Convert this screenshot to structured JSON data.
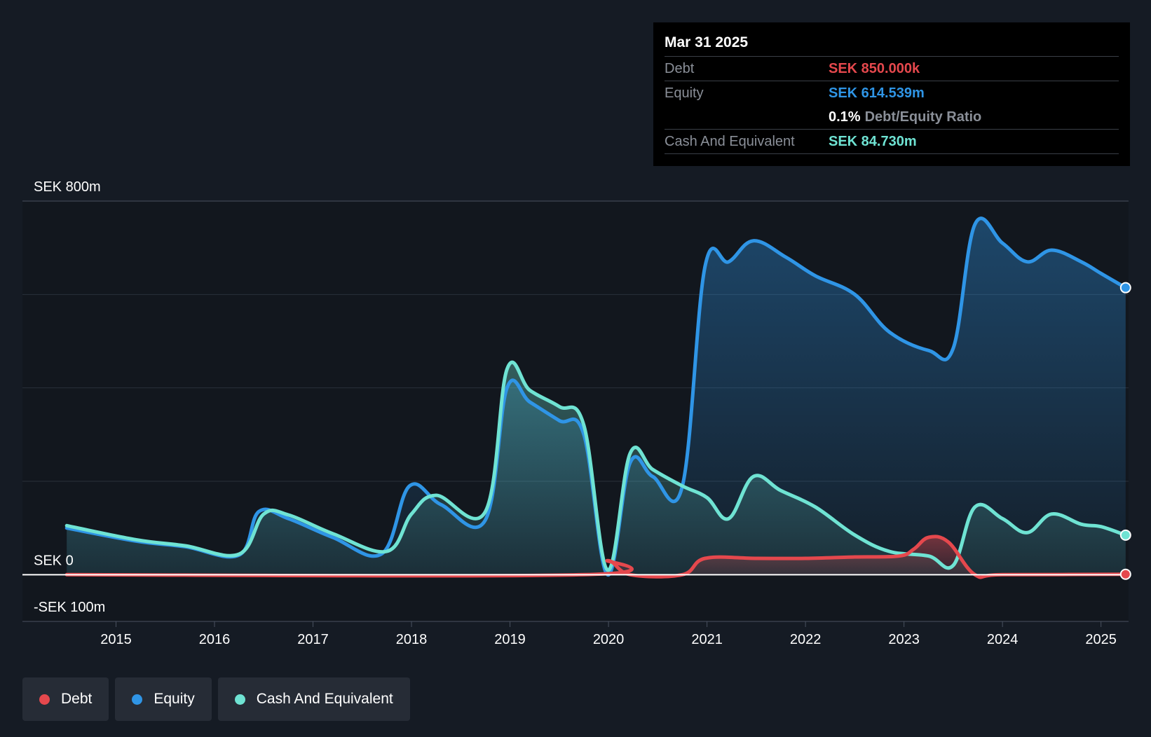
{
  "tooltip": {
    "date": "Mar 31 2025",
    "debt_label": "Debt",
    "debt_value": "SEK 850.000k",
    "equity_label": "Equity",
    "equity_value": "SEK 614.539m",
    "ratio_value": "0.1%",
    "ratio_label": "Debt/Equity Ratio",
    "cash_label": "Cash And Equivalent",
    "cash_value": "SEK 84.730m"
  },
  "legend": {
    "debt": "Debt",
    "equity": "Equity",
    "cash": "Cash And Equivalent"
  },
  "colors": {
    "background": "#151b24",
    "debt": "#e5484d",
    "equity": "#2f95e6",
    "cash": "#6fe3d3"
  },
  "chart_data": {
    "type": "area",
    "title": "",
    "xlabel": "",
    "ylabel": "",
    "ylim": [
      -100,
      800
    ],
    "y_unit": "SEK m",
    "y_tick_labels": [
      {
        "value": 800,
        "label": "SEK 800m"
      },
      {
        "value": 0,
        "label": "SEK 0"
      },
      {
        "value": -100,
        "label": "-SEK 100m"
      }
    ],
    "gridlines": [
      800,
      600,
      400,
      200
    ],
    "x_ticks": [
      "2015",
      "2016",
      "2017",
      "2018",
      "2019",
      "2020",
      "2021",
      "2022",
      "2023",
      "2024",
      "2025"
    ],
    "x_range": [
      2014.05,
      2025.28
    ],
    "series": [
      {
        "name": "Equity",
        "color": "#2f95e6",
        "x": [
          2014.5,
          2015.2,
          2015.7,
          2016.25,
          2016.45,
          2016.75,
          2017.2,
          2017.7,
          2017.98,
          2018.3,
          2018.75,
          2018.97,
          2019.2,
          2019.5,
          2019.75,
          2019.99,
          2020.22,
          2020.45,
          2020.75,
          2020.98,
          2021.22,
          2021.47,
          2021.8,
          2022.1,
          2022.5,
          2022.85,
          2023.25,
          2023.5,
          2023.72,
          2024.0,
          2024.25,
          2024.5,
          2024.8,
          2025.0,
          2025.25
        ],
        "values": [
          100,
          72,
          60,
          42,
          135,
          120,
          80,
          45,
          190,
          150,
          117,
          400,
          370,
          330,
          300,
          0,
          240,
          210,
          190,
          660,
          670,
          715,
          680,
          640,
          600,
          520,
          480,
          485,
          750,
          710,
          670,
          695,
          670,
          645,
          614.5
        ]
      },
      {
        "name": "Cash And Equivalent",
        "color": "#6fe3d3",
        "x": [
          2014.5,
          2015.2,
          2015.7,
          2016.25,
          2016.5,
          2016.75,
          2017.2,
          2017.75,
          2018.0,
          2018.25,
          2018.75,
          2018.97,
          2019.2,
          2019.5,
          2019.75,
          2019.99,
          2020.22,
          2020.45,
          2020.75,
          2021.0,
          2021.22,
          2021.47,
          2021.75,
          2022.1,
          2022.5,
          2022.85,
          2023.25,
          2023.5,
          2023.72,
          2024.0,
          2024.25,
          2024.5,
          2024.8,
          2025.0,
          2025.25
        ],
        "values": [
          105,
          75,
          62,
          44,
          130,
          128,
          88,
          50,
          130,
          170,
          135,
          440,
          395,
          360,
          320,
          10,
          260,
          225,
          190,
          165,
          120,
          210,
          180,
          145,
          85,
          50,
          40,
          20,
          145,
          120,
          90,
          130,
          108,
          103,
          84.7
        ]
      },
      {
        "name": "Debt",
        "color": "#e5484d",
        "x": [
          2014.5,
          2019.75,
          2019.99,
          2020.22,
          2020.75,
          2020.98,
          2021.5,
          2022.0,
          2022.5,
          2022.95,
          2023.1,
          2023.25,
          2023.45,
          2023.72,
          2024.0,
          2025.25
        ],
        "values": [
          0,
          0,
          30,
          0,
          0,
          35,
          35,
          35,
          38,
          40,
          55,
          80,
          70,
          0,
          0,
          0.85
        ]
      }
    ]
  }
}
